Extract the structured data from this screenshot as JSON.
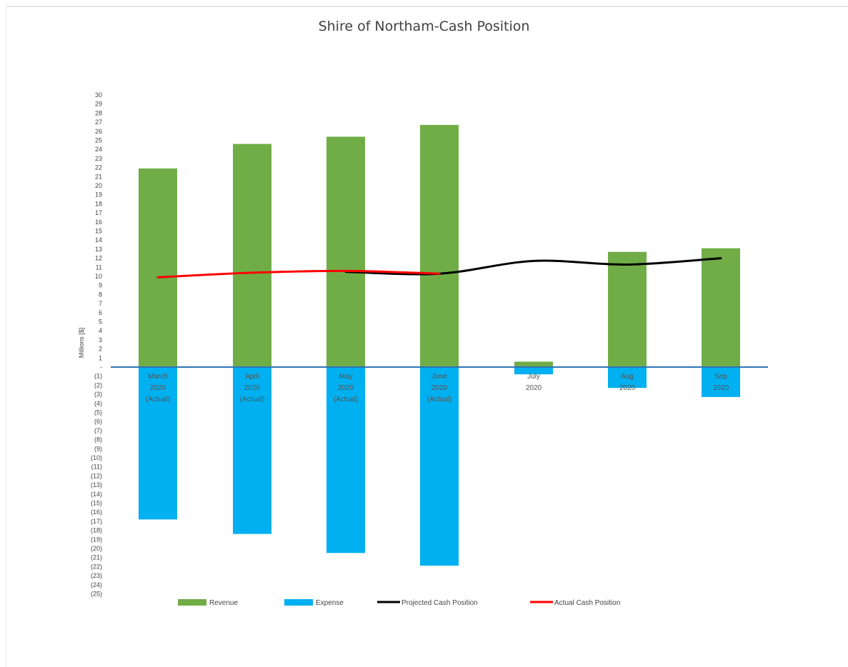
{
  "chart_data": {
    "type": "bar",
    "title": "Shire of Northam-Cash Position",
    "ylabel": "Millions [$]",
    "xlabel": "",
    "ylim": [
      -25,
      30
    ],
    "ytick_labels_positive": [
      "30",
      "29",
      "28",
      "27",
      "26",
      "25",
      "24",
      "23",
      "22",
      "21",
      "20",
      "19",
      "18",
      "17",
      "16",
      "15",
      "14",
      "13",
      "12",
      "11",
      "10",
      "9",
      "8",
      "7",
      "6",
      "5",
      "4",
      "3",
      "2",
      "1",
      "-"
    ],
    "ytick_labels_negative": [
      "(1)",
      "(2)",
      "(3)",
      "(4)",
      "(5)",
      "(6)",
      "(7)",
      "(8)",
      "(9)",
      "(10)",
      "(11)",
      "(12)",
      "(13)",
      "(14)",
      "(15)",
      "(16)",
      "(17)",
      "(18)",
      "(19)",
      "(20)",
      "(21)",
      "(22)",
      "(23)",
      "(24)",
      "(25)"
    ],
    "categories": [
      {
        "line1": "March",
        "line2": "2020",
        "line3": "(Actual)"
      },
      {
        "line1": "April",
        "line2": "2020",
        "line3": "(Actual)"
      },
      {
        "line1": "May",
        "line2": "2020",
        "line3": "(Actual)"
      },
      {
        "line1": "June",
        "line2": "2020",
        "line3": "(Actual)"
      },
      {
        "line1": "July",
        "line2": "2020",
        "line3": ""
      },
      {
        "line1": "Aug",
        "line2": "2020",
        "line3": ""
      },
      {
        "line1": "Sep",
        "line2": "2020",
        "line3": ""
      }
    ],
    "series": [
      {
        "name": "Revenue",
        "kind": "bar",
        "color": "#70ad47",
        "values": [
          21.9,
          24.6,
          25.4,
          26.7,
          0.6,
          12.7,
          13.1
        ]
      },
      {
        "name": "Expense",
        "kind": "bar",
        "color": "#00b0f0",
        "values": [
          -16.8,
          -18.4,
          -20.5,
          -21.9,
          -0.8,
          -2.3,
          -3.3
        ]
      },
      {
        "name": "Projected Cash Position",
        "kind": "line",
        "color": "#000000",
        "values": [
          null,
          null,
          10.5,
          10.3,
          11.7,
          11.3,
          12.0
        ]
      },
      {
        "name": "Actual Cash Position",
        "kind": "line",
        "color": "#ff0000",
        "values": [
          9.9,
          10.4,
          10.6,
          10.3,
          null,
          null,
          null
        ]
      }
    ],
    "legend_position": "bottom",
    "grid": false,
    "zero_line_color": "#2e75b6"
  }
}
